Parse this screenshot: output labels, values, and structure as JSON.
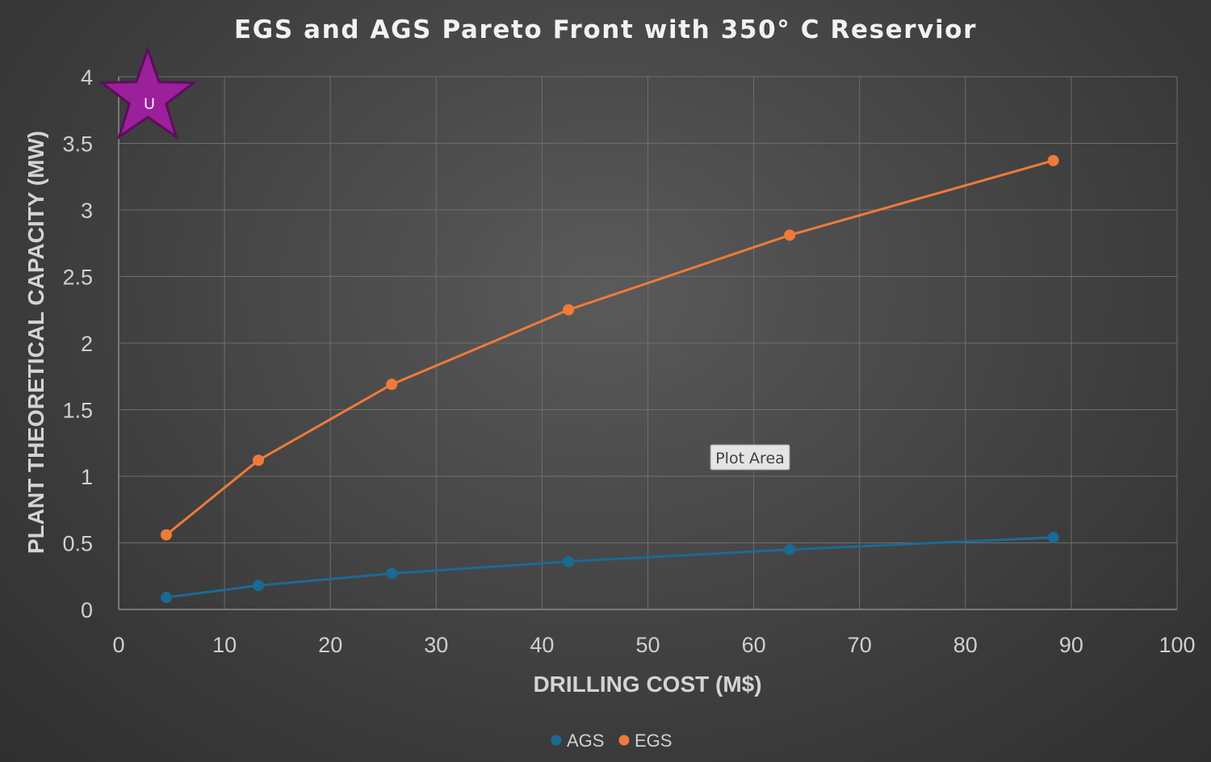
{
  "chart_data": {
    "type": "line",
    "title": "EGS and AGS Pareto Front with 350° C Reservior",
    "xlabel": "DRILLING COST (M$)",
    "ylabel": "PLANT THEORETICAL CAPACITY (MW)",
    "xlim": [
      0,
      100
    ],
    "ylim": [
      0,
      4
    ],
    "x_ticks": [
      0,
      10,
      20,
      30,
      40,
      50,
      60,
      70,
      80,
      90,
      100
    ],
    "y_ticks": [
      0,
      0.5,
      1,
      1.5,
      2,
      2.5,
      3,
      3.5,
      4
    ],
    "x_tick_labels": [
      "0",
      "10",
      "20",
      "30",
      "40",
      "50",
      "60",
      "70",
      "80",
      "90",
      "100"
    ],
    "y_tick_labels": [
      "0",
      "0.5",
      "1",
      "1.5",
      "2",
      "2.5",
      "3",
      "3.5",
      "4"
    ],
    "grid": true,
    "legend_position": "bottom",
    "series": [
      {
        "name": "AGS",
        "color": "#1b6a94",
        "x": [
          4.5,
          13.2,
          25.8,
          42.5,
          63.4,
          88.3
        ],
        "y": [
          0.09,
          0.18,
          0.27,
          0.36,
          0.45,
          0.54
        ]
      },
      {
        "name": "EGS",
        "color": "#f07a38",
        "x": [
          4.5,
          13.2,
          25.8,
          42.5,
          63.4,
          88.3
        ],
        "y": [
          0.56,
          1.12,
          1.69,
          2.25,
          2.81,
          3.37
        ]
      }
    ]
  },
  "tooltip": {
    "label": "Plot Area"
  },
  "badge": {
    "label": "U",
    "color": "#9c1f9c",
    "outline": "#5a0f5a"
  }
}
